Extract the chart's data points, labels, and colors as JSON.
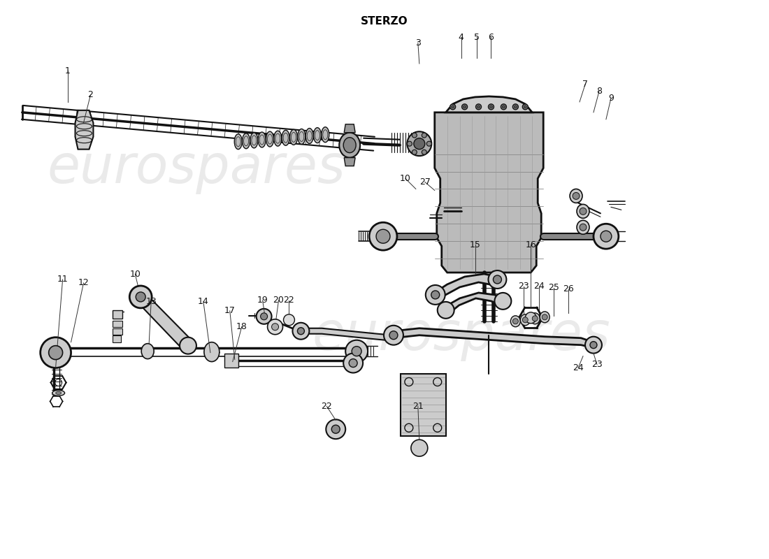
{
  "title": "STERZO",
  "title_fontsize": 11,
  "title_fontweight": "bold",
  "bg_color": "#ffffff",
  "line_color": "#111111",
  "watermark_color": "#dddddd",
  "watermark_fontsize": 55,
  "label_fontsize": 9,
  "fig_width": 11.0,
  "fig_height": 8.0,
  "dpi": 100
}
